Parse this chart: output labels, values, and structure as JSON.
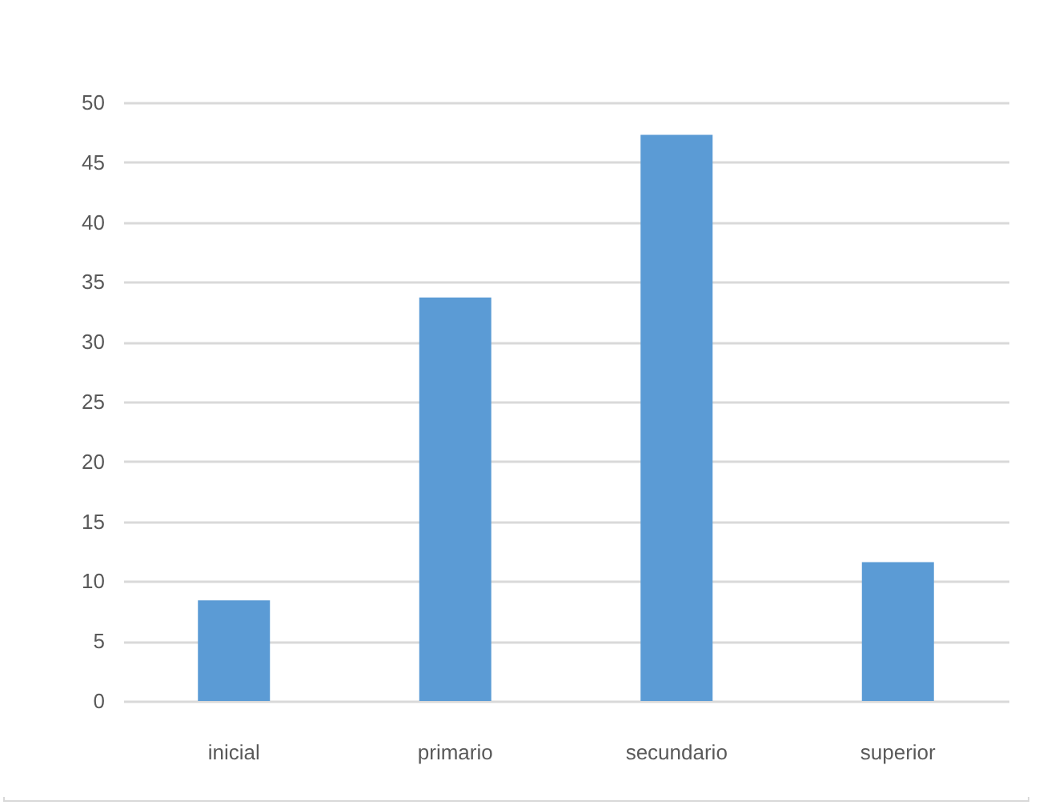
{
  "chart_data": {
    "type": "bar",
    "categories": [
      "inicial",
      "primario",
      "secundario",
      "superior"
    ],
    "values": [
      8.4,
      33.7,
      47.3,
      11.6
    ],
    "color": "#5b9bd5",
    "ylim": [
      0,
      50
    ],
    "yticks": [
      0,
      5,
      10,
      15,
      20,
      25,
      30,
      35,
      40,
      45,
      50
    ],
    "grid": "y"
  }
}
